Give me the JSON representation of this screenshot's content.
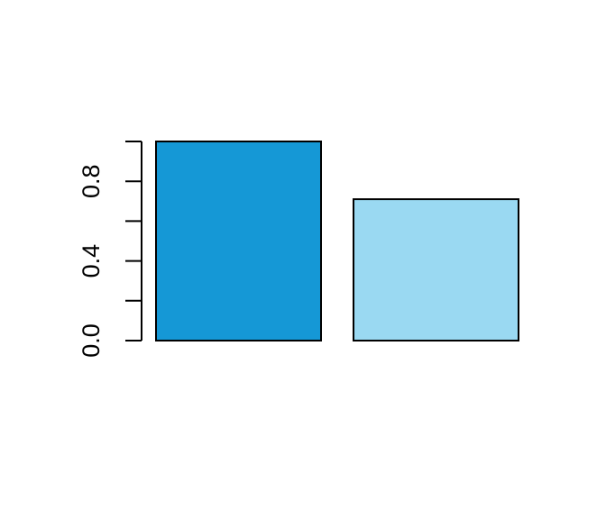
{
  "chart_data": {
    "type": "bar",
    "categories": [
      "",
      ""
    ],
    "values": [
      1.0,
      0.71
    ],
    "colors": [
      "#1598d6",
      "#9ad9f2"
    ],
    "ylim": [
      0,
      1.0
    ],
    "y_ticks": [
      0.0,
      0.2,
      0.4,
      0.6,
      0.8,
      1.0
    ],
    "y_tick_labels": [
      "0.0",
      "",
      "0.4",
      "",
      "0.8",
      ""
    ],
    "title": "",
    "xlabel": "",
    "ylabel": "",
    "grid": false,
    "legend": "none"
  }
}
